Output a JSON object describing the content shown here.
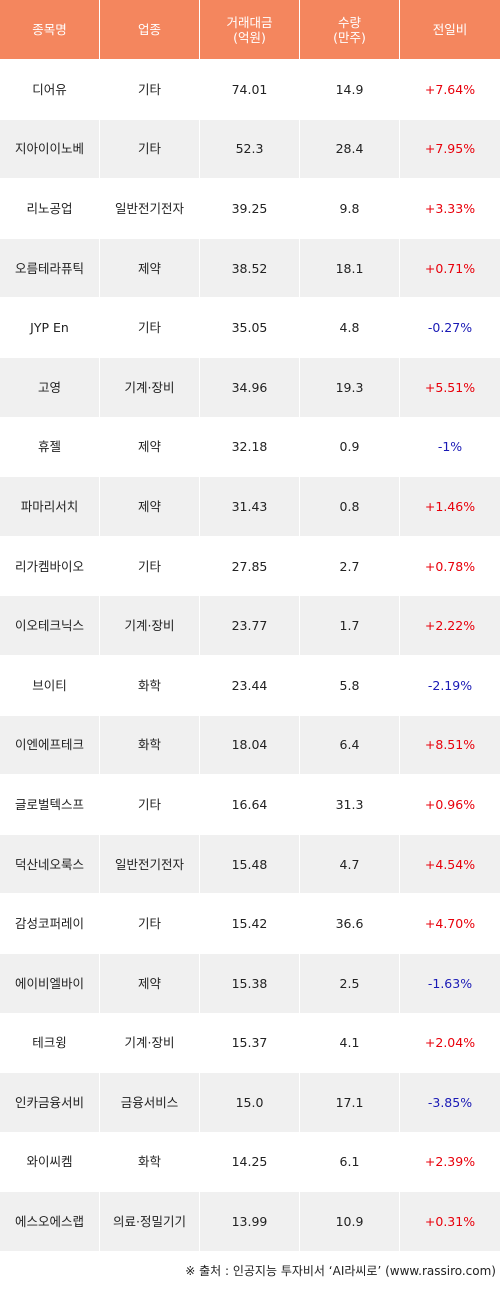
{
  "header": {
    "name": "종목명",
    "sector": "업종",
    "amount_line1": "거래대금",
    "amount_line2": "(억원)",
    "volume_line1": "수량",
    "volume_line2": "(만주)",
    "change": "전일비"
  },
  "rows": [
    {
      "name": "디어유",
      "sector": "기타",
      "amount": "74.01",
      "volume": "14.9",
      "change": "+7.64%",
      "dir": "up"
    },
    {
      "name": "지아이이노베",
      "sector": "기타",
      "amount": "52.3",
      "volume": "28.4",
      "change": "+7.95%",
      "dir": "up"
    },
    {
      "name": "리노공업",
      "sector": "일반전기전자",
      "amount": "39.25",
      "volume": "9.8",
      "change": "+3.33%",
      "dir": "up"
    },
    {
      "name": "오름테라퓨틱",
      "sector": "제약",
      "amount": "38.52",
      "volume": "18.1",
      "change": "+0.71%",
      "dir": "up"
    },
    {
      "name": "JYP En",
      "sector": "기타",
      "amount": "35.05",
      "volume": "4.8",
      "change": "-0.27%",
      "dir": "down"
    },
    {
      "name": "고영",
      "sector": "기계·장비",
      "amount": "34.96",
      "volume": "19.3",
      "change": "+5.51%",
      "dir": "up"
    },
    {
      "name": "휴젤",
      "sector": "제약",
      "amount": "32.18",
      "volume": "0.9",
      "change": "-1%",
      "dir": "down"
    },
    {
      "name": "파마리서치",
      "sector": "제약",
      "amount": "31.43",
      "volume": "0.8",
      "change": "+1.46%",
      "dir": "up"
    },
    {
      "name": "리가켐바이오",
      "sector": "기타",
      "amount": "27.85",
      "volume": "2.7",
      "change": "+0.78%",
      "dir": "up"
    },
    {
      "name": "이오테크닉스",
      "sector": "기계·장비",
      "amount": "23.77",
      "volume": "1.7",
      "change": "+2.22%",
      "dir": "up"
    },
    {
      "name": "브이티",
      "sector": "화학",
      "amount": "23.44",
      "volume": "5.8",
      "change": "-2.19%",
      "dir": "down"
    },
    {
      "name": "이엔에프테크",
      "sector": "화학",
      "amount": "18.04",
      "volume": "6.4",
      "change": "+8.51%",
      "dir": "up"
    },
    {
      "name": "글로벌텍스프",
      "sector": "기타",
      "amount": "16.64",
      "volume": "31.3",
      "change": "+0.96%",
      "dir": "up"
    },
    {
      "name": "덕산네오룩스",
      "sector": "일반전기전자",
      "amount": "15.48",
      "volume": "4.7",
      "change": "+4.54%",
      "dir": "up"
    },
    {
      "name": "감성코퍼레이",
      "sector": "기타",
      "amount": "15.42",
      "volume": "36.6",
      "change": "+4.70%",
      "dir": "up"
    },
    {
      "name": "에이비엘바이",
      "sector": "제약",
      "amount": "15.38",
      "volume": "2.5",
      "change": "-1.63%",
      "dir": "down"
    },
    {
      "name": "테크윙",
      "sector": "기계·장비",
      "amount": "15.37",
      "volume": "4.1",
      "change": "+2.04%",
      "dir": "up"
    },
    {
      "name": "인카금융서비",
      "sector": "금융서비스",
      "amount": "15.0",
      "volume": "17.1",
      "change": "-3.85%",
      "dir": "down"
    },
    {
      "name": "와이씨켐",
      "sector": "화학",
      "amount": "14.25",
      "volume": "6.1",
      "change": "+2.39%",
      "dir": "up"
    },
    {
      "name": "에스오에스랩",
      "sector": "의료·정밀기기",
      "amount": "13.99",
      "volume": "10.9",
      "change": "+0.31%",
      "dir": "up"
    }
  ],
  "footer": {
    "text": "※ 출처 : 인공지능 투자비서 ‘AI라씨로’ (www.rassiro.com)"
  },
  "colors": {
    "header_bg": "#f4865e",
    "up": "#e8000b",
    "down": "#1a1ab5",
    "stripe": "#f0f0f0"
  }
}
